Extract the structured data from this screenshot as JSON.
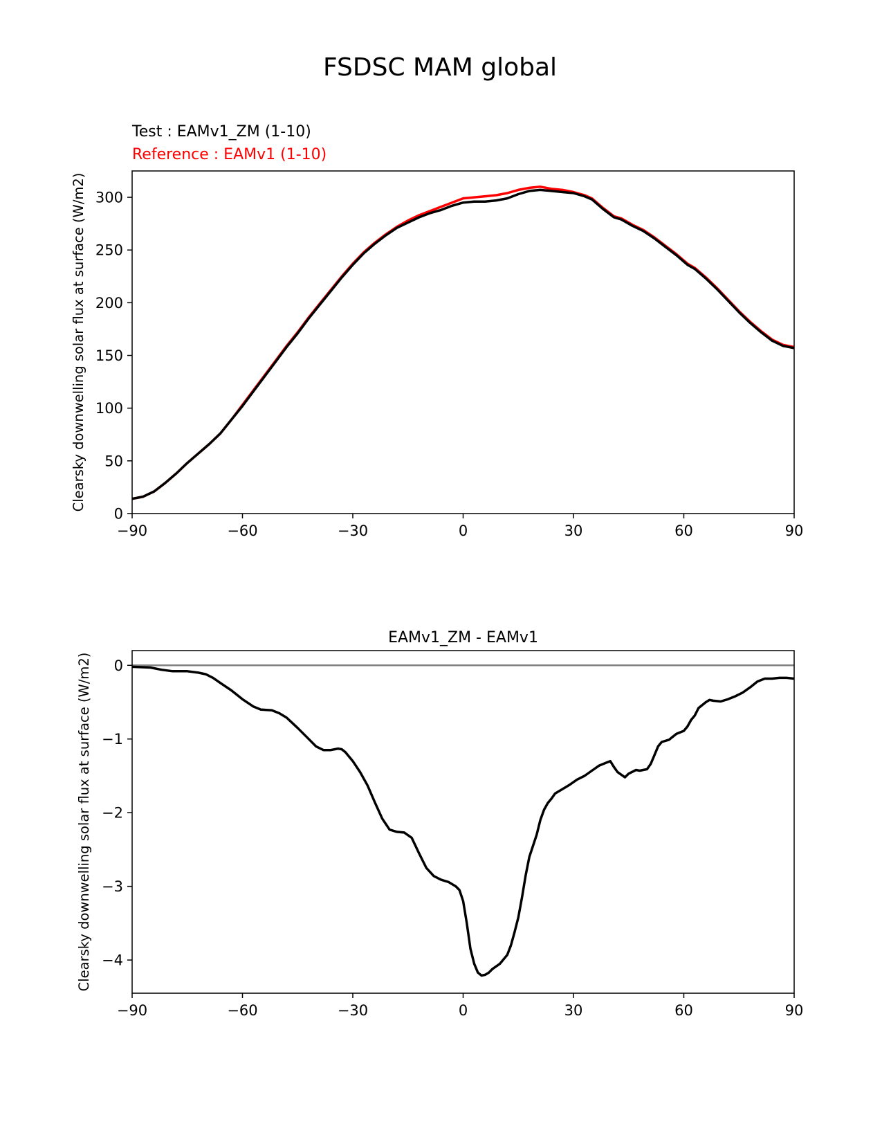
{
  "suptitle": "FSDSC MAM global",
  "colors": {
    "test": "#000000",
    "reference": "#ff0000",
    "zero_line": "#808080",
    "axes": "#000000"
  },
  "chart_data": [
    {
      "type": "line",
      "test_label": "Test : EAMv1_ZM (1-10)",
      "reference_label": "Reference : EAMv1 (1-10)",
      "ylabel": "Clearsky downwelling solar flux at surface (W/m2)",
      "xlabel": "",
      "xlim": [
        -90,
        90
      ],
      "ylim": [
        0,
        325
      ],
      "xticks": [
        -90,
        -60,
        -30,
        0,
        30,
        60,
        90
      ],
      "xtick_labels": [
        "−90",
        "−60",
        "−30",
        "0",
        "30",
        "60",
        "90"
      ],
      "yticks": [
        0,
        50,
        100,
        150,
        200,
        250,
        300
      ],
      "ytick_labels": [
        "0",
        "50",
        "100",
        "150",
        "200",
        "250",
        "300"
      ],
      "series": [
        {
          "name": "Reference : EAMv1 (1-10)",
          "color": "#ff0000",
          "x": [
            -90,
            -87,
            -84,
            -81,
            -78,
            -75,
            -72,
            -69,
            -66,
            -63,
            -60,
            -57,
            -54,
            -51,
            -48,
            -45,
            -42,
            -39,
            -36,
            -33,
            -30,
            -27,
            -24,
            -21,
            -18,
            -15,
            -12,
            -9,
            -6,
            -3,
            0,
            3,
            6,
            9,
            12,
            15,
            18,
            21,
            24,
            27,
            30,
            33,
            35,
            38,
            41,
            43,
            46,
            49,
            52,
            55,
            58,
            61,
            63,
            66,
            69,
            72,
            75,
            78,
            81,
            84,
            87,
            90
          ],
          "y": [
            14,
            16,
            21,
            29,
            38,
            48,
            57,
            66,
            76,
            89,
            103,
            117,
            131,
            145,
            159,
            172,
            186,
            199,
            212,
            225,
            237,
            248,
            257,
            265,
            272,
            278,
            283,
            287,
            291,
            295,
            299,
            300,
            301,
            302,
            304,
            307,
            309,
            310,
            308,
            307,
            305,
            302,
            299,
            290,
            282,
            280,
            274,
            269,
            262,
            254,
            246,
            237,
            233,
            224,
            214,
            203,
            192,
            182,
            173,
            165,
            160,
            158
          ]
        },
        {
          "name": "Test : EAMv1_ZM (1-10)",
          "color": "#000000",
          "x": [
            -90,
            -87,
            -84,
            -81,
            -78,
            -75,
            -72,
            -69,
            -66,
            -63,
            -60,
            -57,
            -54,
            -51,
            -48,
            -45,
            -42,
            -39,
            -36,
            -33,
            -30,
            -27,
            -24,
            -21,
            -18,
            -15,
            -12,
            -9,
            -6,
            -3,
            0,
            3,
            6,
            9,
            12,
            15,
            18,
            21,
            24,
            27,
            30,
            33,
            35,
            38,
            41,
            43,
            46,
            49,
            52,
            55,
            58,
            61,
            63,
            66,
            69,
            72,
            75,
            78,
            81,
            84,
            87,
            90
          ],
          "y": [
            14,
            16,
            21,
            29,
            38,
            48,
            57,
            66,
            76,
            89,
            102,
            116,
            130,
            144,
            158,
            171,
            185,
            198,
            211,
            224,
            236,
            247,
            256,
            264,
            271,
            276,
            281,
            285,
            288,
            292,
            295,
            296,
            296,
            297,
            299,
            303,
            306,
            307,
            306,
            305,
            304,
            301,
            298,
            289,
            281,
            279,
            273,
            268,
            261,
            253,
            245,
            236,
            232,
            223,
            213,
            202,
            191,
            181,
            172,
            164,
            159,
            157
          ]
        }
      ]
    },
    {
      "type": "line",
      "title": "EAMv1_ZM - EAMv1",
      "ylabel": "Clearsky downwelling solar flux at surface (W/m2)",
      "xlabel": "",
      "xlim": [
        -90,
        90
      ],
      "ylim": [
        -4.45,
        0.2
      ],
      "xticks": [
        -90,
        -60,
        -30,
        0,
        30,
        60,
        90
      ],
      "xtick_labels": [
        "−90",
        "−60",
        "−30",
        "0",
        "30",
        "60",
        "90"
      ],
      "yticks": [
        0,
        -1,
        -2,
        -3,
        -4
      ],
      "ytick_labels": [
        "0",
        "−1",
        "−2",
        "−3",
        "−4"
      ],
      "zero_line": 0,
      "series": [
        {
          "name": "EAMv1_ZM - EAMv1",
          "color": "#000000",
          "x": [
            -90,
            -85,
            -82,
            -79,
            -75,
            -72,
            -70,
            -68,
            -66,
            -63,
            -60,
            -57,
            -55,
            -52,
            -50,
            -48,
            -45,
            -42,
            -40,
            -38,
            -36,
            -34,
            -33,
            -32,
            -30,
            -28,
            -26,
            -24,
            -22,
            -20,
            -18,
            -16,
            -14,
            -12,
            -10,
            -8,
            -6,
            -4,
            -2,
            -1,
            0,
            1,
            2,
            3,
            4,
            5,
            6,
            7,
            8,
            10,
            12,
            13,
            14,
            15,
            16,
            17,
            18,
            20,
            21,
            22,
            23,
            24,
            25,
            27,
            29,
            31,
            33,
            35,
            37,
            39,
            40,
            41,
            42,
            44,
            45,
            47,
            48,
            50,
            51,
            52,
            53,
            54,
            56,
            57,
            58,
            60,
            61,
            62,
            63,
            64,
            66,
            67,
            68,
            70,
            72,
            74,
            76,
            78,
            80,
            82,
            84,
            86,
            88,
            90
          ],
          "y": [
            -0.02,
            -0.03,
            -0.06,
            -0.08,
            -0.08,
            -0.1,
            -0.12,
            -0.17,
            -0.24,
            -0.34,
            -0.46,
            -0.56,
            -0.6,
            -0.61,
            -0.65,
            -0.71,
            -0.85,
            -1.0,
            -1.1,
            -1.15,
            -1.15,
            -1.13,
            -1.14,
            -1.18,
            -1.3,
            -1.45,
            -1.63,
            -1.86,
            -2.08,
            -2.23,
            -2.26,
            -2.27,
            -2.34,
            -2.55,
            -2.75,
            -2.86,
            -2.91,
            -2.94,
            -3.0,
            -3.05,
            -3.2,
            -3.5,
            -3.85,
            -4.05,
            -4.17,
            -4.21,
            -4.2,
            -4.17,
            -4.12,
            -4.05,
            -3.93,
            -3.8,
            -3.62,
            -3.42,
            -3.15,
            -2.85,
            -2.6,
            -2.3,
            -2.1,
            -1.96,
            -1.87,
            -1.81,
            -1.74,
            -1.68,
            -1.62,
            -1.55,
            -1.5,
            -1.43,
            -1.36,
            -1.32,
            -1.3,
            -1.38,
            -1.45,
            -1.52,
            -1.47,
            -1.42,
            -1.43,
            -1.41,
            -1.34,
            -1.22,
            -1.1,
            -1.04,
            -1.01,
            -0.97,
            -0.93,
            -0.89,
            -0.83,
            -0.74,
            -0.68,
            -0.58,
            -0.5,
            -0.47,
            -0.48,
            -0.49,
            -0.46,
            -0.42,
            -0.37,
            -0.3,
            -0.22,
            -0.18,
            -0.18,
            -0.17,
            -0.17,
            -0.18
          ]
        }
      ]
    }
  ]
}
